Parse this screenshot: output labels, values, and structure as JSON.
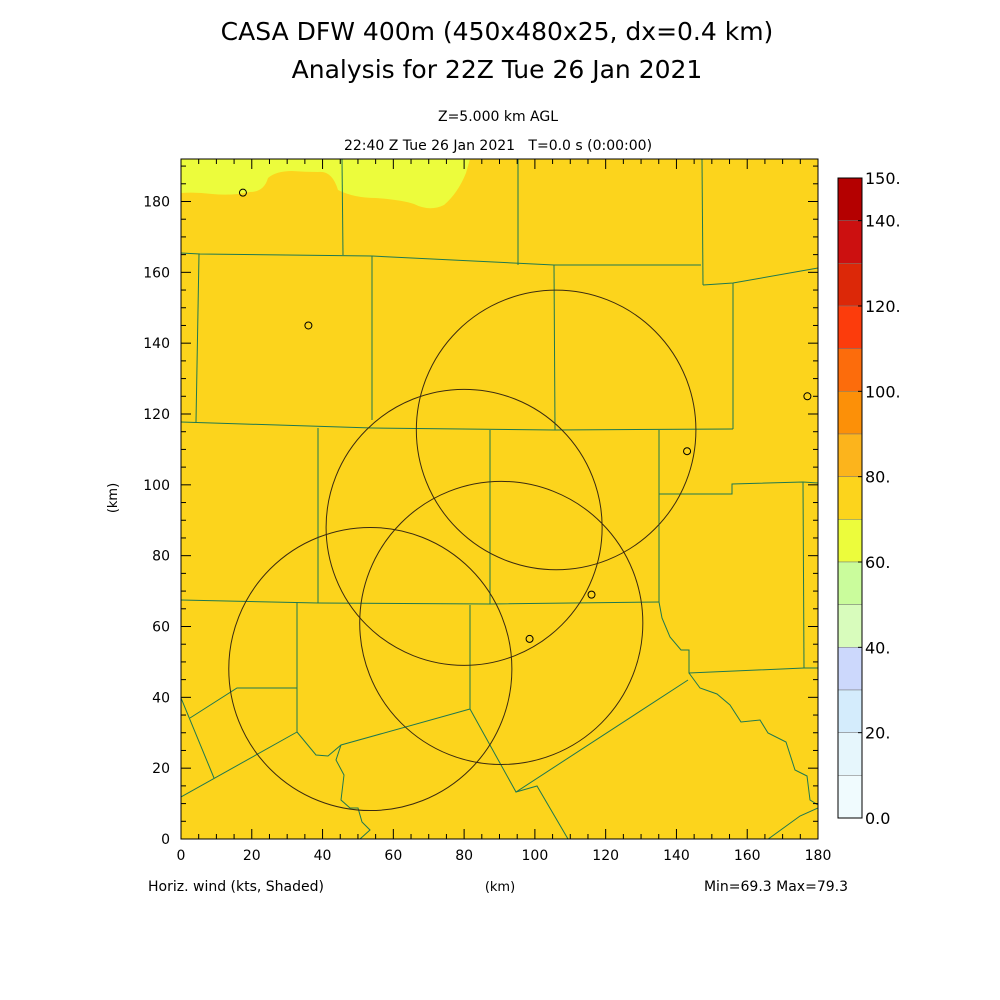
{
  "title": {
    "line1": "CASA DFW 400m (450x480x25, dx=0.4 km)",
    "line2": "Analysis for 22Z Tue 26 Jan 2021"
  },
  "subtitle": {
    "level": "Z=5.000 km AGL",
    "time": "22:40 Z Tue 26 Jan 2021   T=0.0 s (0:00:00)"
  },
  "footer": {
    "field": "Horiz. wind (kts, Shaded)",
    "xunit": "(km)",
    "minmax": "Min=69.3 Max=79.3"
  },
  "axes": {
    "ylabel": "(km)",
    "xticks": [
      "0",
      "20",
      "40",
      "60",
      "80",
      "100",
      "120",
      "140",
      "160",
      "180"
    ],
    "yticks": [
      "0",
      "20",
      "40",
      "60",
      "80",
      "100",
      "120",
      "140",
      "160",
      "180"
    ],
    "xlim": [
      0,
      180
    ],
    "ylim": [
      0,
      192
    ]
  },
  "colors": {
    "field_main": "#fcd41c",
    "field_low": "#ecfc3c",
    "boundary": "#1e7850",
    "radar_ring": "#3a2a10"
  },
  "colorbar": {
    "labels": [
      "150.",
      "140.",
      "120.",
      "100.",
      "80.",
      "60.",
      "40.",
      "20.",
      "0.0"
    ],
    "colors": [
      "#b40000",
      "#cc1010",
      "#dc2808",
      "#fc3c0c",
      "#fc6c0c",
      "#fc9008",
      "#fcb41c",
      "#fcd41c",
      "#ecfc3c",
      "#cafc9c",
      "#d8fcbc",
      "#ccd8fc",
      "#d4ecfc",
      "#e6f6fc",
      "#f0fbfe"
    ]
  },
  "radar_rings_km": [
    {
      "cx": 106,
      "cy": 115.5,
      "r": 39.5
    },
    {
      "cx": 80,
      "cy": 88,
      "r": 39
    },
    {
      "cx": 90.5,
      "cy": 61,
      "r": 40
    },
    {
      "cx": 53.5,
      "cy": 48,
      "r": 40
    }
  ],
  "markers_km": [
    {
      "x": 17.5,
      "y": 182.5
    },
    {
      "x": 36,
      "y": 145
    },
    {
      "x": 177,
      "y": 125
    },
    {
      "x": 143,
      "y": 109.5
    },
    {
      "x": 116,
      "y": 69
    },
    {
      "x": 98.5,
      "y": 56.5
    }
  ]
}
